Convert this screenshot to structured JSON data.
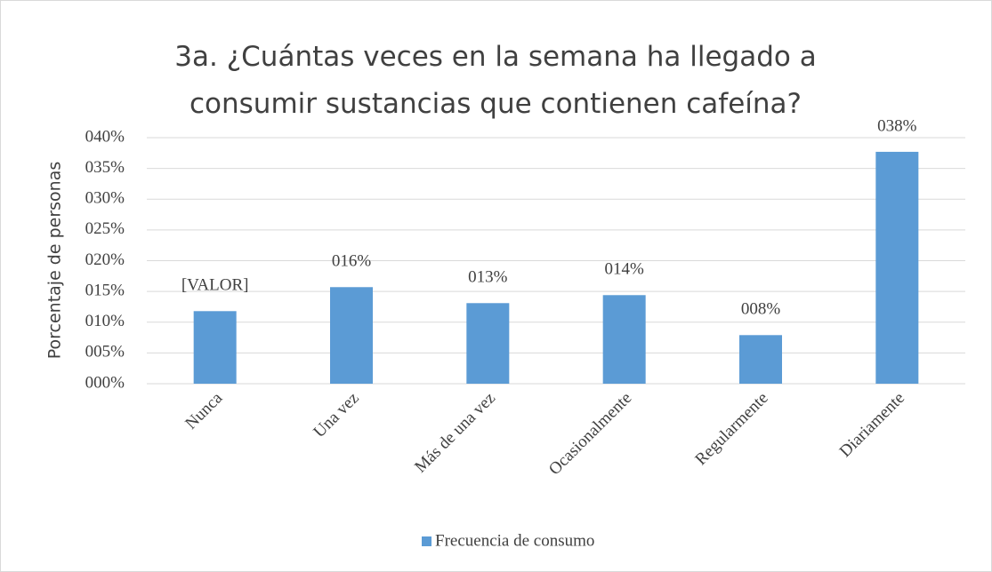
{
  "chart_data": {
    "type": "bar",
    "title": "3a. ¿Cuántas veces en la semana ha llegado a consumir sustancias que contienen cafeína?",
    "ylabel": "Porcentaje de personas",
    "categories": [
      "Nunca",
      "Una vez",
      "Más de una vez",
      "Ocasionalmente",
      "Regularmente",
      "Diariamente"
    ],
    "series": [
      {
        "name": "Frecuencia de consumo",
        "color": "#5b9bd5",
        "values": [
          11.8,
          15.7,
          13.1,
          14.4,
          7.9,
          37.7
        ],
        "value_labels": [
          "[VALOR]",
          "016%",
          "013%",
          "014%",
          "008%",
          "038%"
        ]
      }
    ],
    "ylim": [
      0,
      40
    ],
    "yticks": [
      {
        "value": 0,
        "label": "000%"
      },
      {
        "value": 5,
        "label": "005%"
      },
      {
        "value": 10,
        "label": "010%"
      },
      {
        "value": 15,
        "label": "015%"
      },
      {
        "value": 20,
        "label": "020%"
      },
      {
        "value": 25,
        "label": "025%"
      },
      {
        "value": 30,
        "label": "030%"
      },
      {
        "value": 35,
        "label": "035%"
      },
      {
        "value": 40,
        "label": "040%"
      }
    ],
    "grid": true,
    "legend": "bottom"
  }
}
